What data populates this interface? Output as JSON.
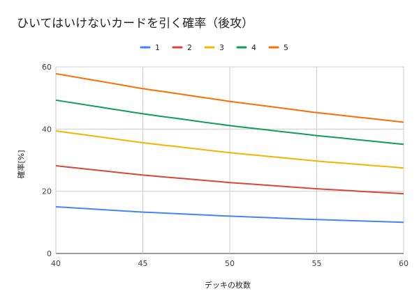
{
  "chart_data": {
    "type": "line",
    "title": "ひいてはいけないカードを引く確率（後攻）",
    "xlabel": "デッキの枚数",
    "ylabel": "確率[%]",
    "xlim": [
      40,
      60
    ],
    "ylim": [
      0,
      60
    ],
    "x_ticks": [
      "40",
      "45",
      "50",
      "55",
      "60"
    ],
    "y_ticks": [
      "0",
      "20",
      "40",
      "60"
    ],
    "grid": true,
    "legend_position": "top",
    "x": [
      40,
      45,
      50,
      55,
      60
    ],
    "series": [
      {
        "name": "1",
        "color": "#4285f4",
        "values": [
          15.0,
          13.3,
          12.0,
          10.9,
          10.0
        ]
      },
      {
        "name": "2",
        "color": "#db4437",
        "values": [
          28.2,
          25.2,
          22.8,
          20.8,
          19.2
        ]
      },
      {
        "name": "3",
        "color": "#f4b400",
        "values": [
          39.4,
          35.6,
          32.4,
          29.7,
          27.5
        ]
      },
      {
        "name": "4",
        "color": "#0f9d58",
        "values": [
          49.3,
          44.9,
          41.1,
          37.9,
          35.1
        ]
      },
      {
        "name": "5",
        "color": "#ff6d01",
        "values": [
          57.8,
          53.0,
          48.9,
          45.3,
          42.2
        ]
      }
    ]
  }
}
